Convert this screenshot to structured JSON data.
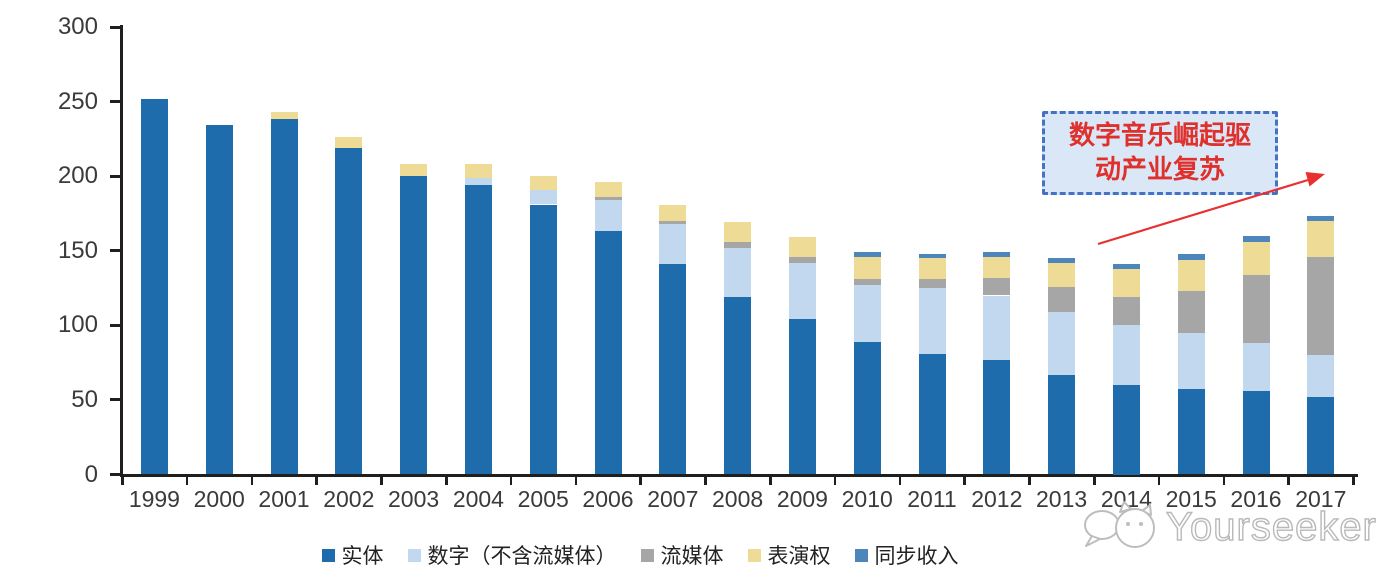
{
  "chart_data": {
    "type": "bar",
    "stacked": true,
    "title": "",
    "xlabel": "",
    "ylabel": "",
    "categories": [
      "1999",
      "2000",
      "2001",
      "2002",
      "2003",
      "2004",
      "2005",
      "2006",
      "2007",
      "2008",
      "2009",
      "2010",
      "2011",
      "2012",
      "2013",
      "2014",
      "2015",
      "2016",
      "2017"
    ],
    "series": [
      {
        "name": "实体",
        "color": "#1f6cac",
        "values": [
          252,
          234,
          238,
          219,
          200,
          194,
          181,
          163,
          141,
          119,
          104,
          89,
          81,
          77,
          67,
          60,
          57,
          56,
          52
        ]
      },
      {
        "name": "数字（不含流媒体）",
        "color": "#c1d8ef",
        "values": [
          0,
          0,
          0,
          0,
          0,
          5,
          10,
          21,
          27,
          33,
          38,
          38,
          44,
          43,
          42,
          40,
          38,
          32,
          28
        ]
      },
      {
        "name": "流媒体",
        "color": "#a6a6a6",
        "values": [
          0,
          0,
          0,
          0,
          0,
          0,
          0,
          2,
          2,
          4,
          4,
          4,
          6,
          12,
          17,
          19,
          28,
          46,
          66
        ]
      },
      {
        "name": "表演权",
        "color": "#eedc96",
        "values": [
          0,
          0,
          5,
          7,
          8,
          9,
          9,
          10,
          11,
          13,
          13,
          15,
          14,
          14,
          16,
          19,
          21,
          22,
          24
        ]
      },
      {
        "name": "同步收入",
        "color": "#4c86ba",
        "values": [
          0,
          0,
          0,
          0,
          0,
          0,
          0,
          0,
          0,
          0,
          0,
          3,
          3,
          3,
          3,
          3,
          4,
          4,
          3
        ]
      }
    ],
    "ylim": [
      0,
      300
    ],
    "y_ticks": [
      300,
      250,
      200,
      150,
      100,
      50,
      0
    ],
    "y_tick_labels": [
      "300",
      "250",
      "200",
      "150",
      "100",
      "50",
      "0"
    ],
    "grid": false,
    "legend_position": "bottom"
  },
  "annotation": {
    "line1": "数字音乐崛起驱",
    "line2": "动产业复苏",
    "text_color": "#e0302c",
    "border_color": "#4472c4",
    "fill_color": "#d9e7f6",
    "arrow_color": "#e8312e"
  },
  "watermark": {
    "text": "Yourseeker"
  },
  "colors": {
    "axis": "#1f1f1f",
    "axis_label": "#3a3a3a"
  }
}
